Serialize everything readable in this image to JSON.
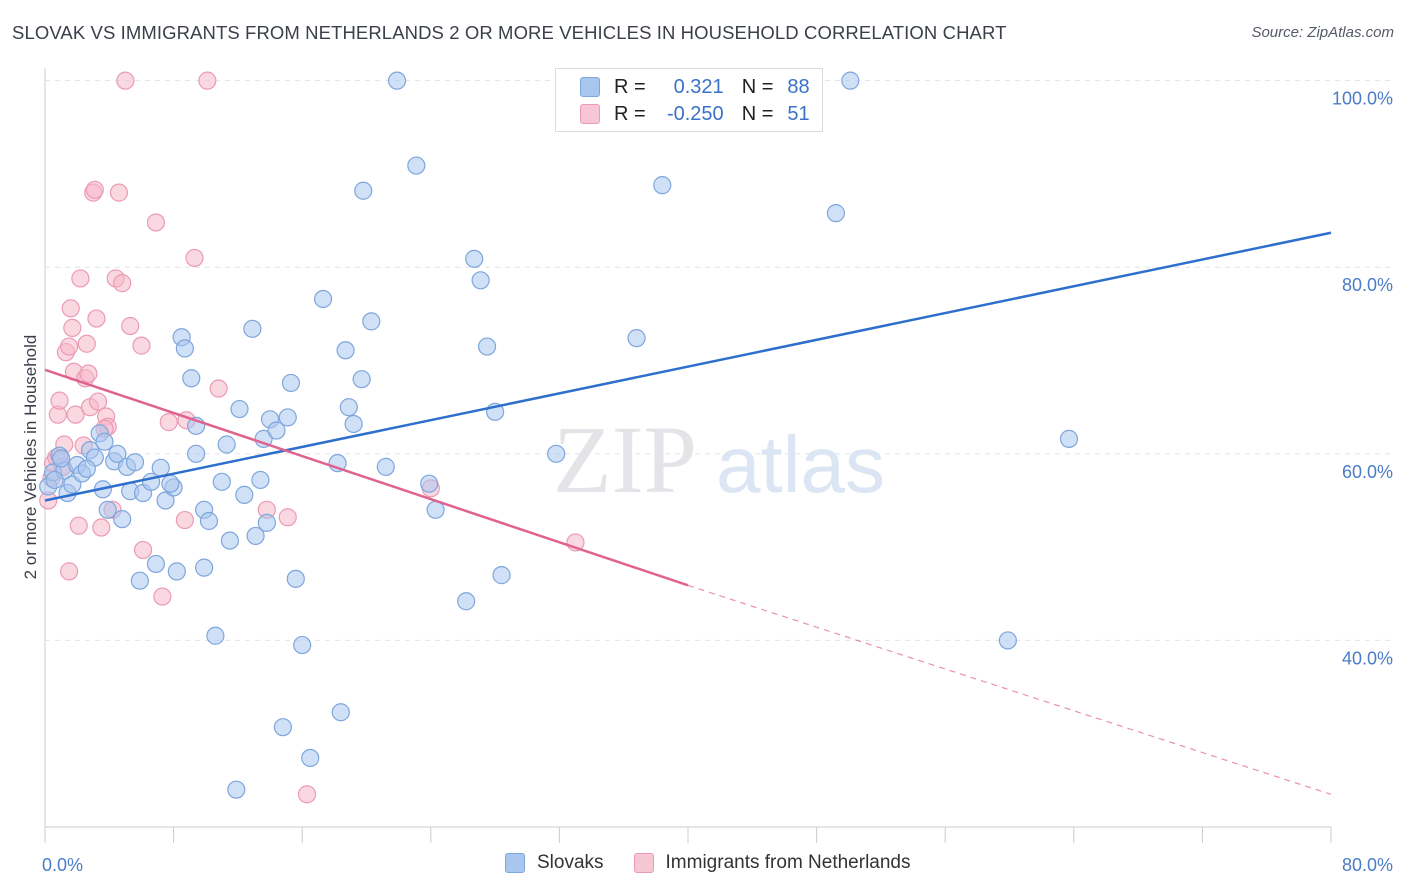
{
  "title": "SLOVAK VS IMMIGRANTS FROM NETHERLANDS 2 OR MORE VEHICLES IN HOUSEHOLD CORRELATION CHART",
  "source": "Source: ZipAtlas.com",
  "watermark": {
    "zip": "ZIP",
    "atlas": "atlas"
  },
  "legend": {
    "rows": [
      {
        "r_label": "R =",
        "r_value": "0.321",
        "n_label": "N =",
        "n_value": "88"
      },
      {
        "r_label": "R =",
        "r_value": "-0.250",
        "n_label": "N =",
        "n_value": "51"
      }
    ]
  },
  "bottom_legend": [
    "Slovaks",
    "Immigrants from Netherlands"
  ],
  "colors": {
    "blue_fill": "#a9c6ee",
    "blue_stroke": "#7ea6dc",
    "blue_line": "#2e6fcc",
    "pink_fill": "#f6b8cb",
    "pink_stroke": "#ec9ab3",
    "pink_line": "#e0638f",
    "tick_text": "#4a7cc8"
  },
  "chart_data": {
    "type": "scatter",
    "title": "SLOVAK VS IMMIGRANTS FROM NETHERLANDS 2 OR MORE VEHICLES IN HOUSEHOLD CORRELATION CHART",
    "xlabel": "",
    "ylabel": "2 or more Vehicles in Household",
    "xlim": [
      0,
      80
    ],
    "ylim": [
      20,
      102
    ],
    "x_tick_labels": [
      "0.0%",
      "80.0%"
    ],
    "y_ticks": [
      40,
      60,
      80,
      100
    ],
    "y_tick_labels": [
      "40.0%",
      "60.0%",
      "80.0%",
      "100.0%"
    ],
    "grid": true,
    "legend_position": "top-center",
    "series": [
      {
        "name": "Slovaks",
        "color": "#a9c6ee",
        "trend": {
          "x": [
            0,
            80
          ],
          "y": [
            55.0,
            83.7
          ],
          "style": "solid"
        },
        "points": [
          [
            0.2,
            56.5
          ],
          [
            0.5,
            58.0
          ],
          [
            0.9,
            59.8
          ],
          [
            1.2,
            58.2
          ],
          [
            1.4,
            55.8
          ],
          [
            1.7,
            56.7
          ],
          [
            2.0,
            58.8
          ],
          [
            2.3,
            57.9
          ],
          [
            2.8,
            60.4
          ],
          [
            3.1,
            59.6
          ],
          [
            3.4,
            62.2
          ],
          [
            3.7,
            61.3
          ],
          [
            3.9,
            54.0
          ],
          [
            4.3,
            59.2
          ],
          [
            4.5,
            60.0
          ],
          [
            4.8,
            53.0
          ],
          [
            5.1,
            58.6
          ],
          [
            5.3,
            56.0
          ],
          [
            5.6,
            59.1
          ],
          [
            5.9,
            46.4
          ],
          [
            6.1,
            55.8
          ],
          [
            6.6,
            57.0
          ],
          [
            6.9,
            48.2
          ],
          [
            7.2,
            58.5
          ],
          [
            7.5,
            55.0
          ],
          [
            8.0,
            56.4
          ],
          [
            8.2,
            47.4
          ],
          [
            8.5,
            72.5
          ],
          [
            8.7,
            71.3
          ],
          [
            9.1,
            68.1
          ],
          [
            9.4,
            63.0
          ],
          [
            9.4,
            60.0
          ],
          [
            9.9,
            47.8
          ],
          [
            9.9,
            54.0
          ],
          [
            10.2,
            52.8
          ],
          [
            10.6,
            40.5
          ],
          [
            11.0,
            57.0
          ],
          [
            11.3,
            61.0
          ],
          [
            11.5,
            50.7
          ],
          [
            11.9,
            24.0
          ],
          [
            12.1,
            64.8
          ],
          [
            12.4,
            55.6
          ],
          [
            12.9,
            73.4
          ],
          [
            13.1,
            51.2
          ],
          [
            13.4,
            57.2
          ],
          [
            13.6,
            61.6
          ],
          [
            13.8,
            52.6
          ],
          [
            14.0,
            63.7
          ],
          [
            14.4,
            62.5
          ],
          [
            14.8,
            30.7
          ],
          [
            15.1,
            63.9
          ],
          [
            15.3,
            67.6
          ],
          [
            15.6,
            46.6
          ],
          [
            16.0,
            39.5
          ],
          [
            16.5,
            27.4
          ],
          [
            17.3,
            76.6
          ],
          [
            18.2,
            59.0
          ],
          [
            18.4,
            32.3
          ],
          [
            18.7,
            71.1
          ],
          [
            18.9,
            65.0
          ],
          [
            19.2,
            63.2
          ],
          [
            19.7,
            68.0
          ],
          [
            19.8,
            88.2
          ],
          [
            20.3,
            74.2
          ],
          [
            21.2,
            58.6
          ],
          [
            21.9,
            100.0
          ],
          [
            23.1,
            90.9
          ],
          [
            23.9,
            56.8
          ],
          [
            24.3,
            54.0
          ],
          [
            26.2,
            44.2
          ],
          [
            26.7,
            80.9
          ],
          [
            27.1,
            78.6
          ],
          [
            27.5,
            71.5
          ],
          [
            28.0,
            64.5
          ],
          [
            28.4,
            47.0
          ],
          [
            31.8,
            60.0
          ],
          [
            36.8,
            72.4
          ],
          [
            38.0,
            100.0
          ],
          [
            38.4,
            88.8
          ],
          [
            49.2,
            85.8
          ],
          [
            50.1,
            100.0
          ],
          [
            59.9,
            40.0
          ],
          [
            63.7,
            61.6
          ],
          [
            0.6,
            57.2
          ],
          [
            1.0,
            59.5
          ],
          [
            2.6,
            58.4
          ],
          [
            3.6,
            56.2
          ],
          [
            7.8,
            56.8
          ]
        ]
      },
      {
        "name": "Immigrants from Netherlands",
        "color": "#f6b8cb",
        "trend": {
          "x": [
            0,
            40
          ],
          "y": [
            69.0,
            45.9
          ],
          "style": "solid",
          "extension_x": [
            40,
            80
          ],
          "extension_y": [
            45.9,
            23.5
          ],
          "extension_style": "dashed"
        },
        "points": [
          [
            0.2,
            55.0
          ],
          [
            0.4,
            57.4
          ],
          [
            0.5,
            59.0
          ],
          [
            0.7,
            59.6
          ],
          [
            0.8,
            64.2
          ],
          [
            0.9,
            65.7
          ],
          [
            1.1,
            58.6
          ],
          [
            1.2,
            61.0
          ],
          [
            1.3,
            70.9
          ],
          [
            1.5,
            71.5
          ],
          [
            1.5,
            47.4
          ],
          [
            1.6,
            75.6
          ],
          [
            1.7,
            73.5
          ],
          [
            1.8,
            68.8
          ],
          [
            1.9,
            64.2
          ],
          [
            2.1,
            52.3
          ],
          [
            2.2,
            78.8
          ],
          [
            2.4,
            60.9
          ],
          [
            2.5,
            68.1
          ],
          [
            2.6,
            71.8
          ],
          [
            2.7,
            68.6
          ],
          [
            2.8,
            65.0
          ],
          [
            3.0,
            88.0
          ],
          [
            3.1,
            88.3
          ],
          [
            3.2,
            74.5
          ],
          [
            3.3,
            65.6
          ],
          [
            3.5,
            52.1
          ],
          [
            3.8,
            64.0
          ],
          [
            3.9,
            62.9
          ],
          [
            4.2,
            54.0
          ],
          [
            4.4,
            78.8
          ],
          [
            4.6,
            88.0
          ],
          [
            4.8,
            78.3
          ],
          [
            5.0,
            100.0
          ],
          [
            5.3,
            73.7
          ],
          [
            6.0,
            71.6
          ],
          [
            6.1,
            49.7
          ],
          [
            6.9,
            84.8
          ],
          [
            7.3,
            44.7
          ],
          [
            7.7,
            63.4
          ],
          [
            8.8,
            63.6
          ],
          [
            8.7,
            52.9
          ],
          [
            9.3,
            81.0
          ],
          [
            10.1,
            100.0
          ],
          [
            10.8,
            67.0
          ],
          [
            13.8,
            54.0
          ],
          [
            15.1,
            53.2
          ],
          [
            16.3,
            23.5
          ],
          [
            24.0,
            56.3
          ],
          [
            33.0,
            50.5
          ],
          [
            3.7,
            62.7
          ]
        ]
      }
    ]
  }
}
